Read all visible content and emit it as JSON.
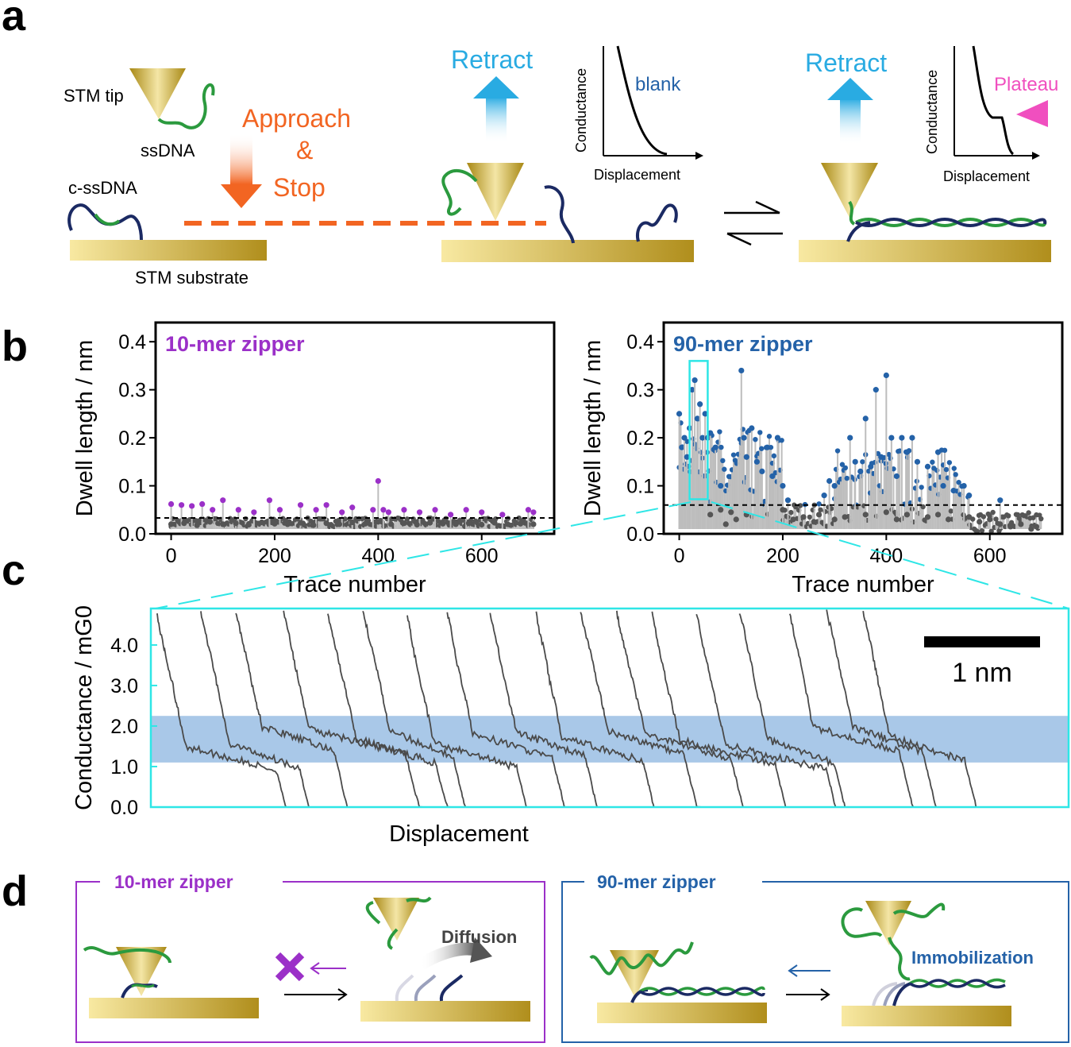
{
  "panel_labels": {
    "a": "a",
    "b": "b",
    "c": "c",
    "d": "d"
  },
  "colors": {
    "orange": "#f26522",
    "cyan": "#29abe2",
    "purple": "#9b30c8",
    "blue": "#2462a8",
    "pink": "#f04fbf",
    "gold_light": "#f8e8a0",
    "gold_dark": "#b49218",
    "dna_green": "#2b9a3e",
    "dna_navy": "#1b2a63",
    "gray_point": "#555555",
    "highlight_box": "#2ee6e6",
    "plateau_band": "#a9c8e8"
  },
  "icons": [
    "stm-tip-icon",
    "retract-arrow-icon",
    "approach-arrow-icon",
    "equilibrium-arrows-icon",
    "diffusion-arrow-icon",
    "cross-mark-icon"
  ],
  "panel_a": {
    "stm_tip": "STM tip",
    "ssdna": "ssDNA",
    "c_ssdna": "c-ssDNA",
    "approach": "Approach",
    "ampersand": "&",
    "stop": "Stop",
    "stm_substrate": "STM substrate",
    "retract_1": "Retract",
    "retract_2": "Retract",
    "inset_1": {
      "ylabel": "Conductance",
      "xlabel": "Displacement",
      "label": "blank"
    },
    "inset_2": {
      "ylabel": "Conductance",
      "xlabel": "Displacement",
      "label": "Plateau"
    }
  },
  "panel_d": {
    "left_title": "10-mer zipper",
    "right_title": "90-mer zipper",
    "diffusion": "Diffusion",
    "immobilization": "Immobilization"
  },
  "chart_data": [
    {
      "type": "scatter",
      "title": "10-mer zipper",
      "xlabel": "Trace number",
      "ylabel": "Dwell length / nm",
      "xlim": [
        -30,
        740
      ],
      "ylim": [
        0,
        0.44
      ],
      "xticks": [
        0,
        200,
        400,
        600
      ],
      "yticks": [
        0.0,
        0.1,
        0.2,
        0.3,
        0.4
      ],
      "tick_labels_x": [
        "0",
        "200",
        "400",
        "600"
      ],
      "tick_labels_y": [
        "0.0",
        "0.1",
        "0.2",
        "0.3",
        "0.4"
      ],
      "threshold": 0.033,
      "n_traces": 700,
      "series": [
        {
          "name": "above threshold",
          "color": "#9b30c8",
          "x": [
            0,
            20,
            40,
            60,
            80,
            100,
            130,
            160,
            190,
            210,
            250,
            280,
            300,
            330,
            350,
            390,
            400,
            410,
            420,
            450,
            480,
            510,
            540,
            570,
            600,
            640,
            690,
            700
          ],
          "y": [
            0.062,
            0.06,
            0.058,
            0.062,
            0.05,
            0.07,
            0.05,
            0.045,
            0.07,
            0.05,
            0.06,
            0.05,
            0.06,
            0.045,
            0.055,
            0.05,
            0.11,
            0.05,
            0.045,
            0.05,
            0.045,
            0.05,
            0.04,
            0.05,
            0.045,
            0.04,
            0.05,
            0.045
          ]
        },
        {
          "name": "below threshold",
          "color": "#555555",
          "x": [
            0,
            25,
            50,
            75,
            100,
            125,
            150,
            175,
            200,
            225,
            250,
            275,
            300,
            325,
            350,
            375,
            400,
            425,
            450,
            475,
            500,
            525,
            550,
            575,
            600,
            625,
            650,
            675,
            700
          ],
          "y": [
            0.02,
            0.022,
            0.018,
            0.025,
            0.02,
            0.022,
            0.019,
            0.024,
            0.021,
            0.02,
            0.023,
            0.018,
            0.022,
            0.02,
            0.024,
            0.021,
            0.025,
            0.02,
            0.022,
            0.019,
            0.023,
            0.021,
            0.02,
            0.022,
            0.019,
            0.023,
            0.02,
            0.021,
            0.02
          ]
        }
      ]
    },
    {
      "type": "scatter",
      "title": "90-mer zipper",
      "xlabel": "Trace number",
      "ylabel": "Dwell length / nm",
      "xlim": [
        -30,
        740
      ],
      "ylim": [
        0,
        0.44
      ],
      "xticks": [
        0,
        200,
        400,
        600
      ],
      "yticks": [
        0.0,
        0.1,
        0.2,
        0.3,
        0.4
      ],
      "tick_labels_x": [
        "0",
        "200",
        "400",
        "600"
      ],
      "tick_labels_y": [
        "0.0",
        "0.1",
        "0.2",
        "0.3",
        "0.4"
      ],
      "threshold": 0.06,
      "highlight_range_x": [
        20,
        55
      ],
      "series": [
        {
          "name": "above threshold",
          "color": "#2462a8",
          "x": [
            0,
            5,
            10,
            15,
            20,
            25,
            30,
            35,
            40,
            45,
            50,
            55,
            60,
            70,
            80,
            120,
            125,
            130,
            140,
            150,
            160,
            170,
            180,
            190,
            200,
            210,
            280,
            290,
            300,
            330,
            340,
            350,
            360,
            370,
            380,
            390,
            400,
            410,
            420,
            430,
            440,
            450,
            460,
            480,
            500,
            510,
            530,
            550,
            560,
            620
          ],
          "y": [
            0.25,
            0.18,
            0.2,
            0.16,
            0.22,
            0.3,
            0.32,
            0.24,
            0.27,
            0.2,
            0.25,
            0.2,
            0.21,
            0.18,
            0.1,
            0.34,
            0.2,
            0.16,
            0.22,
            0.15,
            0.13,
            0.18,
            0.12,
            0.2,
            0.1,
            0.07,
            0.08,
            0.11,
            0.1,
            0.2,
            0.15,
            0.13,
            0.24,
            0.14,
            0.3,
            0.16,
            0.33,
            0.2,
            0.12,
            0.2,
            0.17,
            0.2,
            0.15,
            0.14,
            0.17,
            0.1,
            0.09,
            0.1,
            0.08,
            0.07
          ]
        },
        {
          "name": "below threshold",
          "color": "#555555",
          "x": [
            60,
            80,
            90,
            100,
            110,
            130,
            200,
            220,
            240,
            260,
            270,
            300,
            320,
            360,
            400,
            420,
            440,
            480,
            500,
            520,
            560,
            580,
            600,
            620,
            640,
            660,
            680,
            690
          ],
          "y": [
            0.04,
            0.05,
            0.02,
            0.045,
            0.03,
            0.04,
            0.05,
            0.03,
            0.035,
            0.025,
            0.04,
            0.03,
            0.035,
            0.04,
            0.045,
            0.03,
            0.04,
            0.035,
            0.04,
            0.03,
            0.035,
            0.025,
            0.03,
            0.02,
            0.015,
            0.02,
            0.01,
            0.015
          ]
        }
      ]
    },
    {
      "type": "line",
      "xlabel": "Displacement",
      "ylabel": "Conductance / mG0",
      "ylim": [
        0,
        4.9
      ],
      "yticks": [
        0.0,
        1.0,
        2.0,
        3.0,
        4.0
      ],
      "tick_labels_y": [
        "0.0",
        "1.0",
        "2.0",
        "3.0",
        "4.0"
      ],
      "plateau_band": [
        1.1,
        2.25
      ],
      "scale_bar": "1 nm",
      "n_traces": 18
    }
  ]
}
